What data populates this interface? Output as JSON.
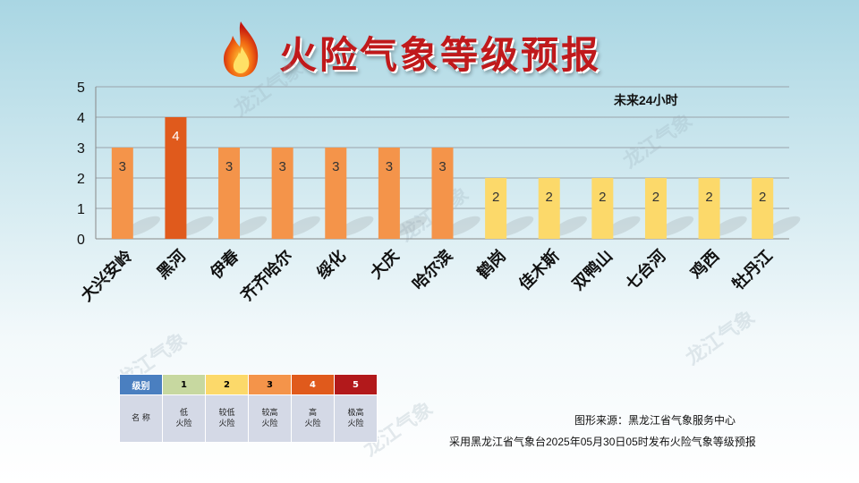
{
  "title": "火险气象等级预报",
  "watermark": "龙江气象",
  "chart_data": {
    "type": "bar",
    "subtitle": "未来24小时",
    "categories": [
      "大兴安岭",
      "黑河",
      "伊春",
      "齐齐哈尔",
      "绥化",
      "大庆",
      "哈尔滨",
      "鹤岗",
      "佳木斯",
      "双鸭山",
      "七台河",
      "鸡西",
      "牡丹江"
    ],
    "values": [
      3,
      4,
      3,
      3,
      3,
      3,
      3,
      2,
      2,
      2,
      2,
      2,
      2
    ],
    "ylim": [
      0,
      5
    ],
    "yticks": [
      0,
      1,
      2,
      3,
      4,
      5
    ],
    "grid": true,
    "data_labels": true,
    "level_colors": {
      "1": "#c7d8a0",
      "2": "#fcd96a",
      "3": "#f4944a",
      "4": "#e05a1c",
      "5": "#b2191b"
    }
  },
  "legend": {
    "header_label": "级别",
    "name_label": "名 称",
    "levels": [
      {
        "level": "1",
        "name_line1": "低",
        "name_line2": "火险",
        "color": "#c7d8a0"
      },
      {
        "level": "2",
        "name_line1": "较低",
        "name_line2": "火险",
        "color": "#fcd96a"
      },
      {
        "level": "3",
        "name_line1": "较高",
        "name_line2": "火险",
        "color": "#f4944a"
      },
      {
        "level": "4",
        "name_line1": "高",
        "name_line2": "火险",
        "color": "#e05a1c"
      },
      {
        "level": "5",
        "name_line1": "极高",
        "name_line2": "火险",
        "color": "#b2191b"
      }
    ],
    "header_color": "#4a7fc0"
  },
  "source": "图形来源：黑龙江省气象服务中心",
  "note": "采用黑龙江省气象台2025年05月30日05时发布火险气象等级预报"
}
